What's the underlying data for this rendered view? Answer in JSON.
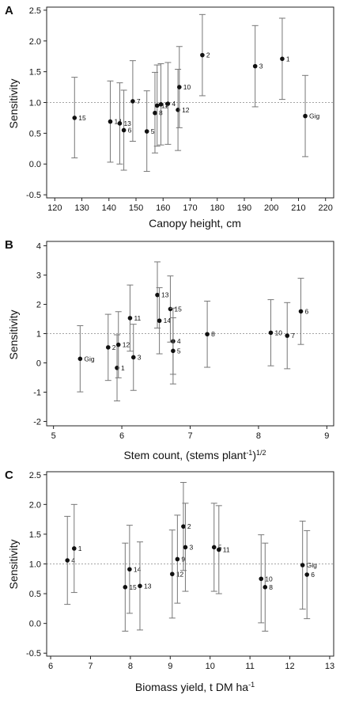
{
  "chart_data": [
    {
      "panel": "A",
      "type": "scatter",
      "xlabel": "Canopy height, cm",
      "ylabel": "Sensitivity",
      "xlim": [
        117,
        223
      ],
      "ylim": [
        -0.55,
        2.55
      ],
      "xticks": [
        120,
        130,
        140,
        150,
        160,
        170,
        180,
        190,
        200,
        210,
        220
      ],
      "yticks": [
        "-0.5",
        "0.0",
        "0.5",
        "1.0",
        "1.5",
        "2.0",
        "2.5"
      ],
      "reference_line": 1.0,
      "points": [
        {
          "label": "15",
          "x": 127.3,
          "y": 0.75,
          "lo": 0.1,
          "hi": 1.41
        },
        {
          "label": "14",
          "x": 140.5,
          "y": 0.69,
          "lo": 0.03,
          "hi": 1.35
        },
        {
          "label": "13",
          "x": 144.0,
          "y": 0.66,
          "lo": 0.0,
          "hi": 1.32
        },
        {
          "label": "6",
          "x": 145.5,
          "y": 0.55,
          "lo": -0.1,
          "hi": 1.2
        },
        {
          "label": "7",
          "x": 148.8,
          "y": 1.02,
          "lo": 0.37,
          "hi": 1.68
        },
        {
          "label": "5",
          "x": 154.0,
          "y": 0.53,
          "lo": -0.12,
          "hi": 1.19
        },
        {
          "label": "8",
          "x": 157.0,
          "y": 0.83,
          "lo": 0.18,
          "hi": 1.49
        },
        {
          "label": "11",
          "x": 157.8,
          "y": 0.95,
          "lo": 0.29,
          "hi": 1.61
        },
        {
          "label": "9",
          "x": 159.2,
          "y": 0.97,
          "lo": 0.31,
          "hi": 1.63
        },
        {
          "label": "4",
          "x": 161.8,
          "y": 0.98,
          "lo": 0.32,
          "hi": 1.65
        },
        {
          "label": "12",
          "x": 165.5,
          "y": 0.88,
          "lo": 0.22,
          "hi": 1.54
        },
        {
          "label": "10",
          "x": 166.0,
          "y": 1.25,
          "lo": 0.59,
          "hi": 1.91
        },
        {
          "label": "2",
          "x": 174.5,
          "y": 1.77,
          "lo": 1.11,
          "hi": 2.43
        },
        {
          "label": "3",
          "x": 194.0,
          "y": 1.59,
          "lo": 0.93,
          "hi": 2.25
        },
        {
          "label": "1",
          "x": 204.0,
          "y": 1.71,
          "lo": 1.05,
          "hi": 2.37
        },
        {
          "label": "Gig",
          "x": 212.5,
          "y": 0.78,
          "lo": 0.12,
          "hi": 1.44
        }
      ]
    },
    {
      "panel": "B",
      "type": "scatter",
      "xlabel": "Stem count, (stems plant",
      "xlabel_sup": "-1",
      "xlabel_tail": ")",
      "xlabel_sup2": "1/2",
      "ylabel": "Sensitivity",
      "xlim": [
        4.9,
        9.1
      ],
      "ylim": [
        -2.15,
        4.15
      ],
      "xticks": [
        5,
        6,
        7,
        8,
        9
      ],
      "yticks": [
        "-2",
        "-1",
        "0",
        "1",
        "2",
        "3",
        "4"
      ],
      "reference_line": 1.0,
      "points": [
        {
          "label": "Gig",
          "x": 5.39,
          "y": 0.14,
          "lo": -0.99,
          "hi": 1.27
        },
        {
          "label": "2",
          "x": 5.8,
          "y": 0.53,
          "lo": -0.6,
          "hi": 1.66
        },
        {
          "label": "1",
          "x": 5.93,
          "y": -0.17,
          "lo": -1.3,
          "hi": 0.96
        },
        {
          "label": "12",
          "x": 5.95,
          "y": 0.62,
          "lo": -0.51,
          "hi": 1.75
        },
        {
          "label": "11",
          "x": 6.12,
          "y": 1.53,
          "lo": 0.4,
          "hi": 2.66
        },
        {
          "label": "3",
          "x": 6.17,
          "y": 0.19,
          "lo": -0.94,
          "hi": 1.32
        },
        {
          "label": "13",
          "x": 6.52,
          "y": 2.32,
          "lo": 1.19,
          "hi": 3.45
        },
        {
          "label": "14",
          "x": 6.55,
          "y": 1.44,
          "lo": 0.31,
          "hi": 2.57
        },
        {
          "label": "15",
          "x": 6.71,
          "y": 1.84,
          "lo": 0.71,
          "hi": 2.97
        },
        {
          "label": "4",
          "x": 6.75,
          "y": 0.74,
          "lo": -0.39,
          "hi": 1.87
        },
        {
          "label": "5",
          "x": 6.75,
          "y": 0.41,
          "lo": -0.72,
          "hi": 1.54
        },
        {
          "label": "8",
          "x": 7.25,
          "y": 0.98,
          "lo": -0.15,
          "hi": 2.11
        },
        {
          "label": "10",
          "x": 8.18,
          "y": 1.03,
          "lo": -0.1,
          "hi": 2.16
        },
        {
          "label": "7",
          "x": 8.42,
          "y": 0.93,
          "lo": -0.2,
          "hi": 2.06
        },
        {
          "label": "6",
          "x": 8.62,
          "y": 1.76,
          "lo": 0.63,
          "hi": 2.89
        }
      ]
    },
    {
      "panel": "C",
      "type": "scatter",
      "xlabel": "Biomass yield, t DM ha",
      "xlabel_sup": "-1",
      "ylabel": "Sensitivity",
      "xlim": [
        5.9,
        13.1
      ],
      "ylim": [
        -0.55,
        2.55
      ],
      "xticks": [
        6,
        7,
        8,
        9,
        10,
        11,
        12,
        13
      ],
      "yticks": [
        "-0.5",
        "0.0",
        "0.5",
        "1.0",
        "1.5",
        "2.0",
        "2.5"
      ],
      "reference_line": 1.0,
      "points": [
        {
          "label": "4",
          "x": 6.42,
          "y": 1.06,
          "lo": 0.32,
          "hi": 1.8
        },
        {
          "label": "1",
          "x": 6.59,
          "y": 1.26,
          "lo": 0.52,
          "hi": 2.0
        },
        {
          "label": "15",
          "x": 7.87,
          "y": 0.61,
          "lo": -0.13,
          "hi": 1.35
        },
        {
          "label": "14",
          "x": 7.98,
          "y": 0.91,
          "lo": 0.17,
          "hi": 1.65
        },
        {
          "label": "13",
          "x": 8.24,
          "y": 0.63,
          "lo": -0.11,
          "hi": 1.37
        },
        {
          "label": "12",
          "x": 9.05,
          "y": 0.83,
          "lo": 0.09,
          "hi": 1.57
        },
        {
          "label": "9",
          "x": 9.18,
          "y": 1.08,
          "lo": 0.34,
          "hi": 1.82
        },
        {
          "label": "2",
          "x": 9.33,
          "y": 1.63,
          "lo": 0.89,
          "hi": 2.37
        },
        {
          "label": "3",
          "x": 9.38,
          "y": 1.28,
          "lo": 0.54,
          "hi": 2.02
        },
        {
          "label": "5",
          "x": 10.1,
          "y": 1.28,
          "lo": 0.54,
          "hi": 2.02
        },
        {
          "label": "11",
          "x": 10.22,
          "y": 1.24,
          "lo": 0.5,
          "hi": 1.98
        },
        {
          "label": "10",
          "x": 11.28,
          "y": 0.75,
          "lo": 0.01,
          "hi": 1.49
        },
        {
          "label": "8",
          "x": 11.38,
          "y": 0.61,
          "lo": -0.13,
          "hi": 1.35
        },
        {
          "label": "Gig",
          "x": 12.32,
          "y": 0.98,
          "lo": 0.24,
          "hi": 1.72
        },
        {
          "label": "6",
          "x": 12.43,
          "y": 0.82,
          "lo": 0.08,
          "hi": 1.56
        }
      ]
    }
  ]
}
